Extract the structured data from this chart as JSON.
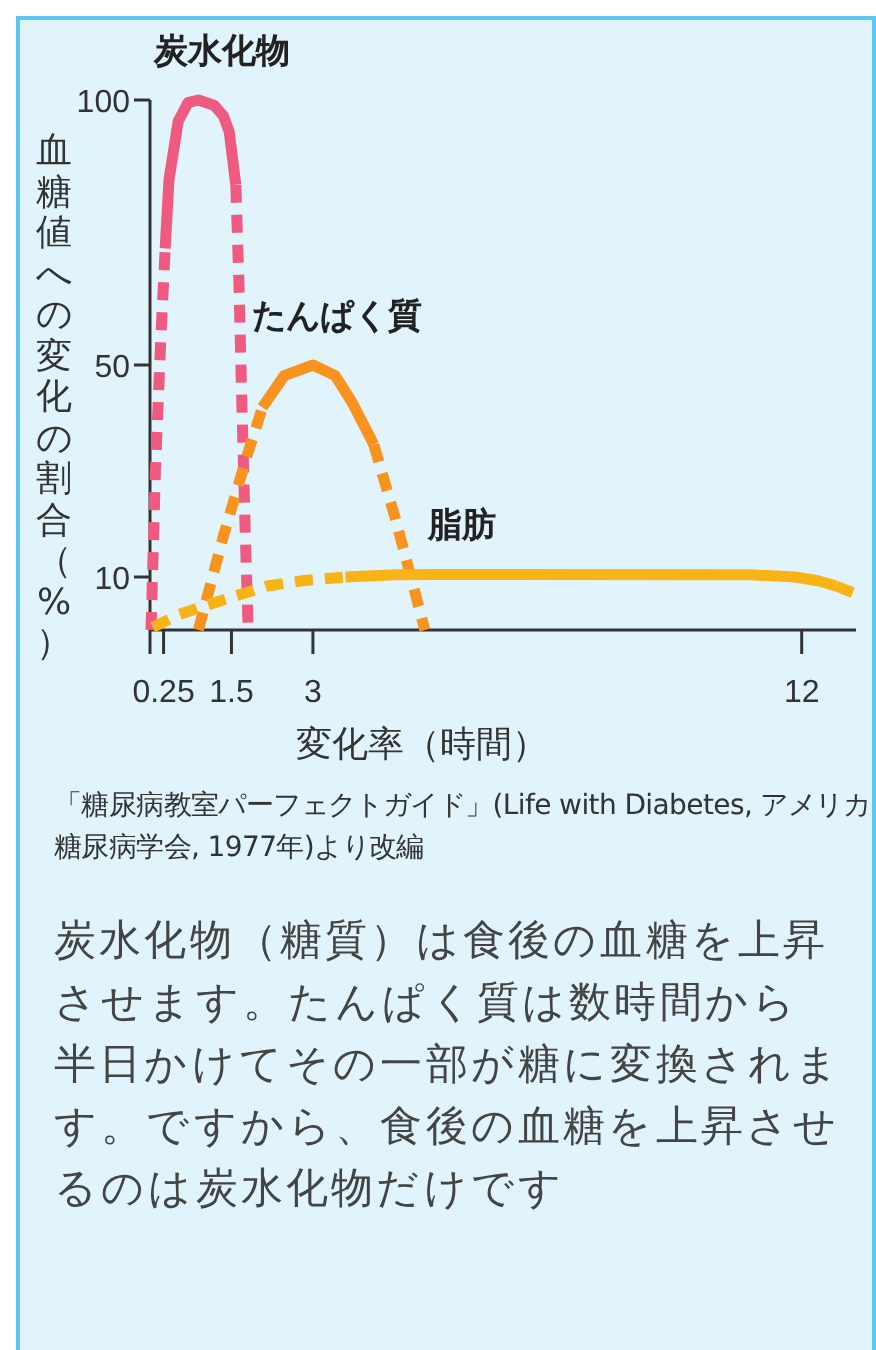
{
  "chart_data": {
    "type": "line",
    "xlabel": "変化率（時間）",
    "ylabel": "血糖値への変化の割合（%）",
    "xlim": [
      0,
      13
    ],
    "ylim": [
      0,
      100
    ],
    "xticks": [
      0.25,
      1.5,
      3,
      12
    ],
    "yticks": [
      10,
      50,
      100
    ],
    "series": [
      {
        "color": "#ef5a80",
        "line_style": "dashed",
        "x": [
          0.02,
          0.1,
          0.2,
          0.28
        ],
        "values": [
          0,
          30,
          55,
          72
        ]
      },
      {
        "name": "炭水化物",
        "color": "#ef5a80",
        "line_style": "solid",
        "x": [
          0.28,
          0.35,
          0.52,
          0.7,
          0.89,
          1.18,
          1.35,
          1.46,
          1.58
        ],
        "values": [
          72,
          85,
          96,
          99.5,
          100,
          99,
          97,
          94,
          84
        ]
      },
      {
        "color": "#ef5a80",
        "line_style": "dashed",
        "x": [
          1.58,
          1.64,
          1.69,
          1.75,
          1.81
        ],
        "values": [
          84,
          65,
          43,
          20,
          0
        ]
      },
      {
        "color": "#f7931e",
        "line_style": "dashed",
        "x": [
          0.89,
          1.36,
          1.76,
          2.07
        ],
        "values": [
          0,
          18,
          32,
          42
        ]
      },
      {
        "name": "たんぱく質",
        "color": "#f7931e",
        "line_style": "solid",
        "x": [
          2.07,
          2.47,
          3,
          3.41,
          3.72,
          4.12
        ],
        "values": [
          42,
          48,
          50,
          48,
          43,
          35
        ]
      },
      {
        "color": "#f7931e",
        "line_style": "dashed",
        "x": [
          4.12,
          4.52,
          4.82,
          5.06
        ],
        "values": [
          35,
          21,
          9.4,
          0
        ]
      },
      {
        "color": "#f9b316",
        "line_style": "dashed",
        "x": [
          0.05,
          0.5,
          0.99,
          1.6,
          2.16,
          2.8,
          3.6
        ],
        "values": [
          0.5,
          2.8,
          4.5,
          6.5,
          8.3,
          9.3,
          10
        ]
      },
      {
        "name": "脂肪",
        "color": "#f9b316",
        "line_style": "solid",
        "x": [
          3.6,
          4.5,
          5.3,
          6,
          11.06,
          11.88,
          12.3,
          12.63
        ],
        "values": [
          10,
          10.4,
          10.5,
          10.5,
          10.4,
          10,
          9.3,
          8.3
        ]
      },
      {
        "color": "#f9b316",
        "line_style": "dashed",
        "x": [
          12.63,
          13
        ],
        "values": [
          8.3,
          6.8
        ]
      }
    ],
    "annotations": [
      "「糖尿病教室パーフェクトガイド」(Life with Diabetes, アメリカ糖尿病学会, 1977年)より改編",
      "炭水化物（糖質）は食後の血糖を上昇させます。たんぱく質は数時間から半日かけてその一部が糖に変換されます。ですから、食後の血糖を上昇させるのは炭水化物だけです"
    ]
  }
}
